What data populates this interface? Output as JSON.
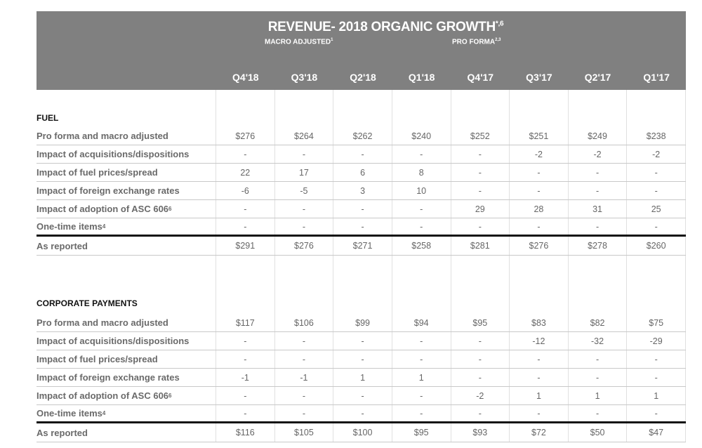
{
  "header": {
    "title": "REVENUE- 2018 ORGANIC GROWTH",
    "title_sup": "*,6",
    "macro_adjusted": "MACRO ADJUSTED",
    "macro_adjusted_sup": "1",
    "pro_forma": "PRO FORMA",
    "pro_forma_sup": "2,3",
    "quarters": [
      "Q4'18",
      "Q3'18",
      "Q2'18",
      "Q1'18",
      "Q4'17",
      "Q3'17",
      "Q2'17",
      "Q1'17"
    ]
  },
  "sections": [
    {
      "title": "FUEL",
      "rows": [
        {
          "label": "Pro forma and macro adjusted",
          "sup": "",
          "values": [
            "$276",
            "$264",
            "$262",
            "$240",
            "$252",
            "$251",
            "$249",
            "$238"
          ]
        },
        {
          "label": "Impact of acquisitions/dispositions",
          "sup": "",
          "values": [
            "-",
            "-",
            "-",
            "-",
            "-",
            "-2",
            "-2",
            "-2"
          ]
        },
        {
          "label": "Impact of fuel prices/spread",
          "sup": "",
          "values": [
            "22",
            "17",
            "6",
            "8",
            "-",
            "-",
            "-",
            "-"
          ]
        },
        {
          "label": "Impact of foreign exchange rates",
          "sup": "",
          "values": [
            "-6",
            "-5",
            "3",
            "10",
            "-",
            "-",
            "-",
            "-"
          ]
        },
        {
          "label": "Impact of adoption of ASC 606",
          "sup": "6",
          "values": [
            "-",
            "-",
            "-",
            "-",
            "29",
            "28",
            "31",
            "25"
          ]
        },
        {
          "label": "One-time items",
          "sup": "4",
          "values": [
            "-",
            "-",
            "-",
            "-",
            "-",
            "-",
            "-",
            "-"
          ]
        },
        {
          "label": "As reported",
          "sup": "",
          "values": [
            "$291",
            "$276",
            "$271",
            "$258",
            "$281",
            "$276",
            "$278",
            "$260"
          ]
        }
      ]
    },
    {
      "title": "CORPORATE PAYMENTS",
      "rows": [
        {
          "label": "Pro forma and macro adjusted",
          "sup": "",
          "values": [
            "$117",
            "$106",
            "$99",
            "$94",
            "$95",
            "$83",
            "$82",
            "$75"
          ]
        },
        {
          "label": "Impact of acquisitions/dispositions",
          "sup": "",
          "values": [
            "-",
            "-",
            "-",
            "-",
            "-",
            "-12",
            "-32",
            "-29"
          ]
        },
        {
          "label": "Impact of fuel prices/spread",
          "sup": "",
          "values": [
            "-",
            "-",
            "-",
            "-",
            "-",
            "-",
            "-",
            "-"
          ]
        },
        {
          "label": "Impact of foreign exchange rates",
          "sup": "",
          "values": [
            "-1",
            "-1",
            "1",
            "1",
            "-",
            "-",
            "-",
            "-"
          ]
        },
        {
          "label": "Impact of adoption of ASC 606",
          "sup": "6",
          "values": [
            "-",
            "-",
            "-",
            "-",
            "-2",
            "1",
            "1",
            "1"
          ]
        },
        {
          "label": "One-time items",
          "sup": "4",
          "values": [
            "-",
            "-",
            "-",
            "-",
            "-",
            "-",
            "-",
            "-"
          ]
        },
        {
          "label": "As reported",
          "sup": "",
          "values": [
            "$116",
            "$105",
            "$100",
            "$95",
            "$93",
            "$72",
            "$50",
            "$47"
          ]
        }
      ]
    }
  ],
  "colors": {
    "header_bg": "#808080",
    "header_text": "#ffffff",
    "label_text": "#6a6a6a"
  }
}
